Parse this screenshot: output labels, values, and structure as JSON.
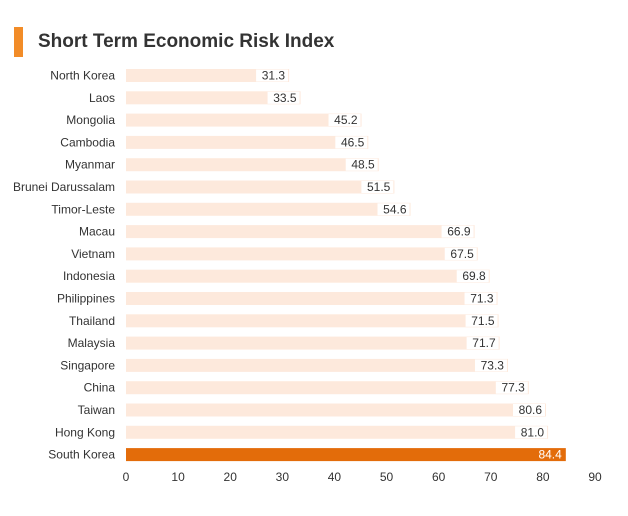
{
  "title": "Short Term Economic Risk Index",
  "colors": {
    "accent": "#f28c28",
    "bar": "#fde9dc",
    "highlight_bar": "#e36c0a",
    "value_box": "#ffffff"
  },
  "chart_data": {
    "type": "bar",
    "orientation": "horizontal",
    "title": "Short Term Economic Risk Index",
    "xlabel": "",
    "ylabel": "",
    "xlim": [
      0,
      90
    ],
    "x_ticks": [
      0,
      10,
      20,
      30,
      40,
      50,
      60,
      70,
      80,
      90
    ],
    "grid": false,
    "legend": "none",
    "highlight": "South Korea",
    "categories": [
      "North Korea",
      "Laos",
      "Mongolia",
      "Cambodia",
      "Myanmar",
      "Brunei Darussalam",
      "Timor-Leste",
      "Macau",
      "Vietnam",
      "Indonesia",
      "Philippines",
      "Thailand",
      "Malaysia",
      "Singapore",
      "China",
      "Taiwan",
      "Hong Kong",
      "South Korea"
    ],
    "values": [
      31.3,
      33.5,
      45.2,
      46.5,
      48.5,
      51.5,
      54.6,
      66.9,
      67.5,
      69.8,
      71.3,
      71.5,
      71.7,
      73.3,
      77.3,
      80.6,
      81.0,
      84.4
    ],
    "value_labels": [
      "31.3",
      "33.5",
      "45.2",
      "46.5",
      "48.5",
      "51.5",
      "54.6",
      "66.9",
      "67.5",
      "69.8",
      "71.3",
      "71.5",
      "71.7",
      "73.3",
      "77.3",
      "80.6",
      "81.0",
      "84.4"
    ]
  }
}
